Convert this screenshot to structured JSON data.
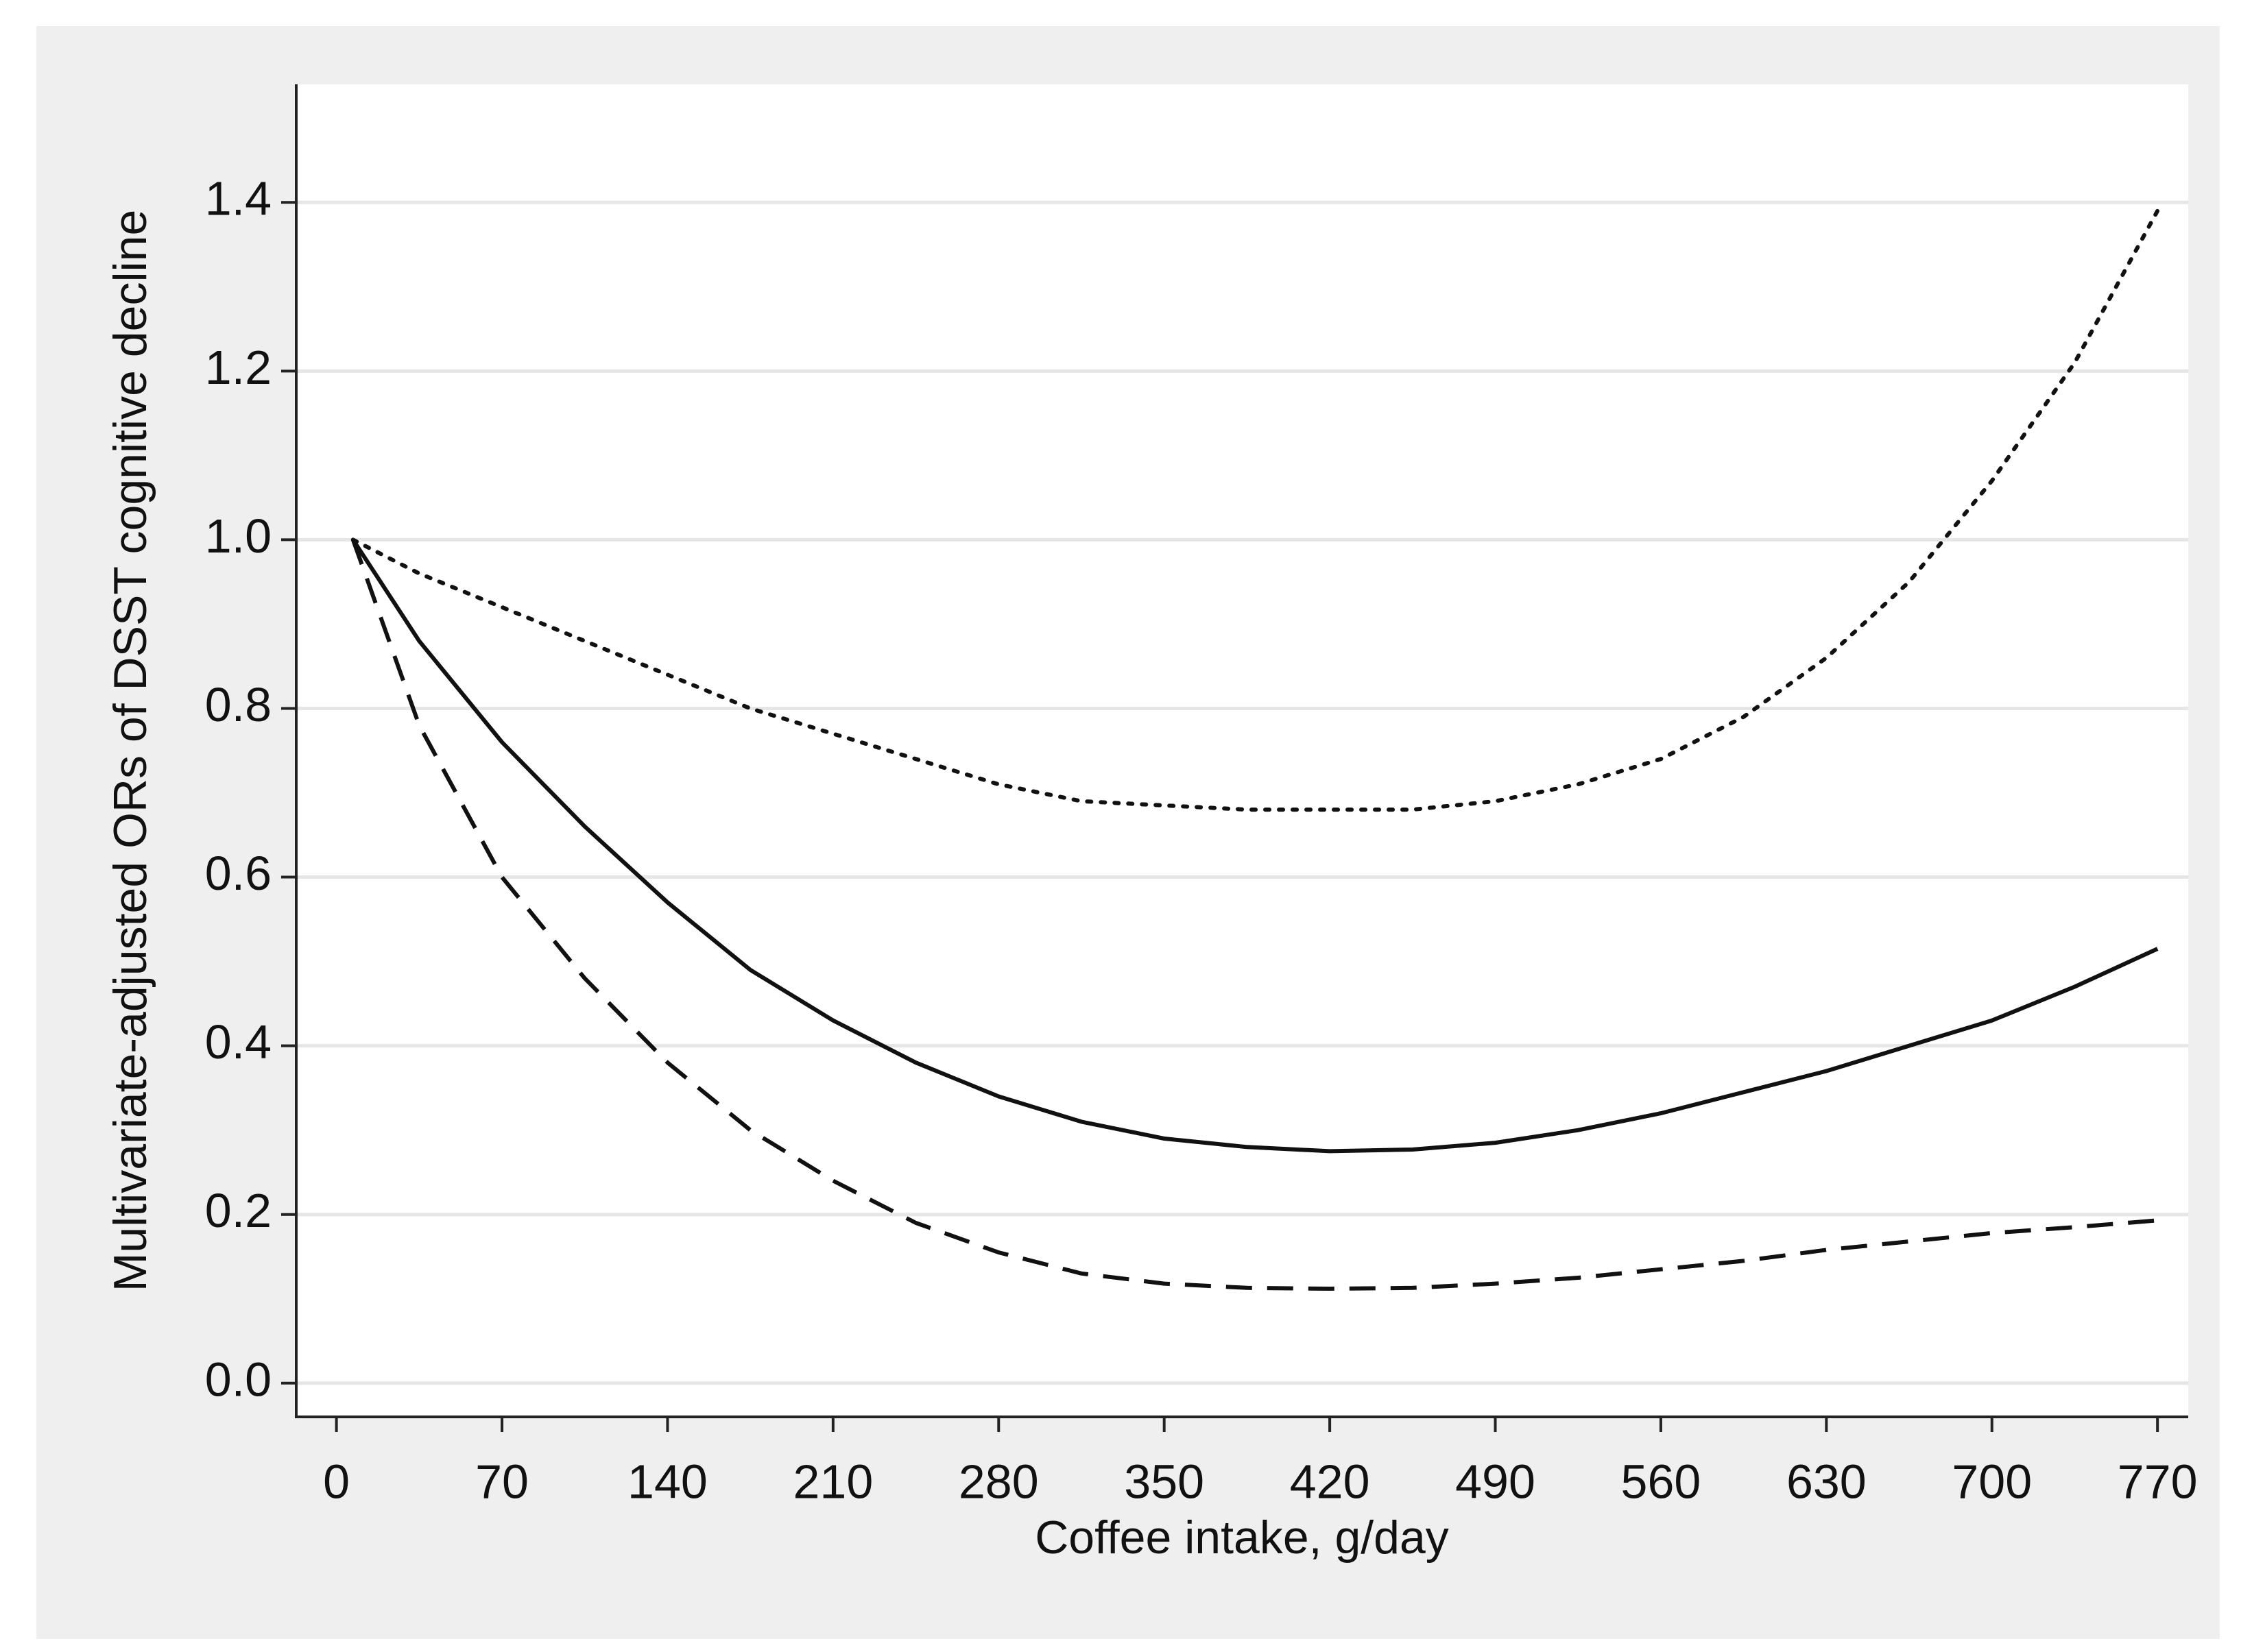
{
  "chart_data": {
    "type": "line",
    "x_label": "Coffee intake, g/day",
    "y_label": "Multivariate-adjusted ORs of DSST cognitive decline",
    "x": [
      7,
      35,
      70,
      105,
      140,
      175,
      210,
      245,
      280,
      315,
      350,
      385,
      420,
      455,
      490,
      525,
      560,
      595,
      630,
      665,
      700,
      735,
      770
    ],
    "series": [
      {
        "color": "#111111",
        "dash": "solid",
        "values": [
          1.0,
          0.88,
          0.76,
          0.66,
          0.57,
          0.49,
          0.43,
          0.38,
          0.34,
          0.31,
          0.29,
          0.28,
          0.275,
          0.277,
          0.285,
          0.3,
          0.32,
          0.345,
          0.37,
          0.4,
          0.43,
          0.47,
          0.515
        ]
      },
      {
        "color": "#111111",
        "dash": "dashed",
        "values": [
          1.0,
          0.78,
          0.6,
          0.48,
          0.38,
          0.3,
          0.24,
          0.19,
          0.155,
          0.13,
          0.118,
          0.113,
          0.112,
          0.113,
          0.118,
          0.125,
          0.135,
          0.145,
          0.158,
          0.168,
          0.178,
          0.185,
          0.193
        ]
      },
      {
        "color": "#111111",
        "dash": "dotted",
        "values": [
          1.0,
          0.96,
          0.92,
          0.88,
          0.84,
          0.8,
          0.77,
          0.74,
          0.71,
          0.69,
          0.685,
          0.68,
          0.68,
          0.68,
          0.69,
          0.71,
          0.74,
          0.79,
          0.86,
          0.95,
          1.07,
          1.21,
          1.39
        ]
      }
    ],
    "xlim": [
      -17,
      783
    ],
    "ylim": [
      -0.04,
      1.54
    ],
    "xticks": [
      0,
      70,
      140,
      210,
      280,
      350,
      420,
      490,
      560,
      630,
      700,
      770
    ],
    "yticks": [
      {
        "value": 0,
        "label": "0.0"
      },
      0.2,
      0.4,
      0.6,
      0.8,
      {
        "value": 1,
        "label": "1.0"
      },
      1.2,
      1.4
    ],
    "grid": true
  }
}
